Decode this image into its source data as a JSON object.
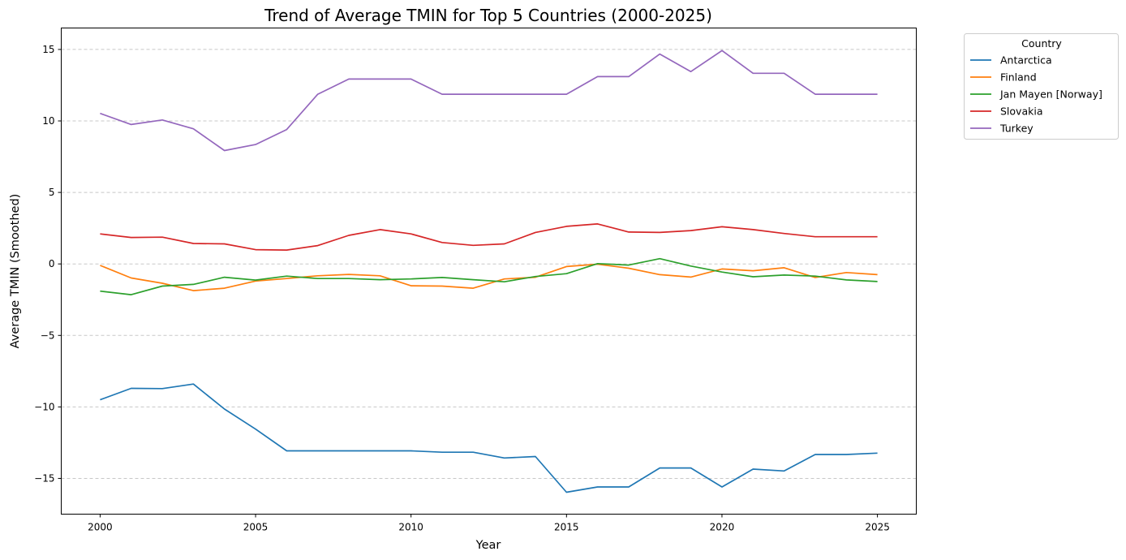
{
  "chart_data": {
    "type": "line",
    "title": "Trend of Average TMIN for Top 5 Countries (2000-2025)",
    "xlabel": "Year",
    "ylabel": "Average TMIN (Smoothed)",
    "xlim": [
      1998.75,
      2026.25
    ],
    "ylim": [
      -17.5,
      16.5
    ],
    "xticks": [
      2000,
      2005,
      2010,
      2015,
      2020,
      2025
    ],
    "yticks": [
      15,
      10,
      5,
      0,
      -5,
      -10,
      -15
    ],
    "ytick_labels": [
      "15",
      "10",
      "5",
      "0",
      "−5",
      "−10",
      "−15"
    ],
    "grid": "y-dashed",
    "legend": {
      "title": "Country",
      "placement": "outside-top-right"
    },
    "x": [
      2000,
      2001,
      2002,
      2003,
      2004,
      2005,
      2006,
      2007,
      2008,
      2009,
      2010,
      2011,
      2012,
      2013,
      2014,
      2015,
      2016,
      2017,
      2018,
      2019,
      2020,
      2021,
      2022,
      2023,
      2024,
      2025
    ],
    "series": [
      {
        "name": "Antarctica",
        "color": "#1f77b4",
        "values": [
          -9.5,
          -8.7,
          -8.72,
          -8.4,
          -10.15,
          -11.55,
          -13.07,
          -13.07,
          -13.07,
          -13.07,
          -13.07,
          -13.17,
          -13.17,
          -13.57,
          -13.47,
          -15.97,
          -15.6,
          -15.6,
          -14.27,
          -14.27,
          -15.6,
          -14.35,
          -14.48,
          -13.33,
          -13.33,
          -13.23
        ]
      },
      {
        "name": "Finland",
        "color": "#ff7f0e",
        "values": [
          -0.1,
          -0.98,
          -1.35,
          -1.87,
          -1.7,
          -1.2,
          -1.02,
          -0.83,
          -0.73,
          -0.83,
          -1.53,
          -1.55,
          -1.7,
          -1.05,
          -0.93,
          -0.18,
          -0.02,
          -0.3,
          -0.75,
          -0.92,
          -0.35,
          -0.48,
          -0.27,
          -0.95,
          -0.6,
          -0.75
        ]
      },
      {
        "name": "Jan Mayen [Norway]",
        "color": "#2ca02c",
        "values": [
          -1.9,
          -2.15,
          -1.55,
          -1.43,
          -0.93,
          -1.13,
          -0.85,
          -1.02,
          -1.02,
          -1.1,
          -1.05,
          -0.95,
          -1.1,
          -1.25,
          -0.88,
          -0.68,
          0.02,
          -0.08,
          0.37,
          -0.15,
          -0.57,
          -0.9,
          -0.78,
          -0.85,
          -1.12,
          -1.23
        ]
      },
      {
        "name": "Slovakia",
        "color": "#d62728",
        "values": [
          2.1,
          1.85,
          1.87,
          1.43,
          1.4,
          1.0,
          0.97,
          1.28,
          2.0,
          2.4,
          2.1,
          1.5,
          1.3,
          1.4,
          2.2,
          2.63,
          2.8,
          2.23,
          2.2,
          2.33,
          2.6,
          2.4,
          2.13,
          1.9,
          1.9,
          1.9
        ]
      },
      {
        "name": "Turkey",
        "color": "#9467bd",
        "values": [
          10.53,
          9.75,
          10.07,
          9.45,
          7.93,
          8.35,
          9.4,
          11.87,
          12.93,
          12.93,
          12.93,
          11.87,
          11.87,
          11.87,
          11.87,
          11.87,
          13.1,
          13.1,
          14.68,
          13.45,
          14.92,
          13.33,
          13.33,
          11.87,
          11.87,
          11.87
        ]
      }
    ]
  }
}
